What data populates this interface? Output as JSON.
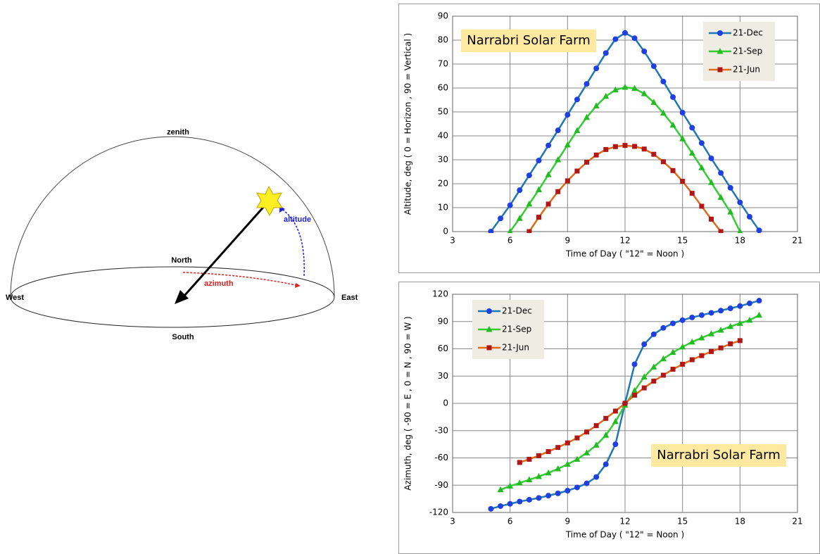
{
  "diagram": {
    "zenith": "zenith",
    "north": "North",
    "south": "South",
    "east": "East",
    "west": "West",
    "altitude": "altitude",
    "azimuth": "azimuth"
  },
  "chart_data": [
    {
      "type": "line",
      "annotation": "Narrabri Solar Farm",
      "x_label": "Time of Day  ( \"12\" = Noon )",
      "y_label": "Altitude, deg  ( 0 = Horizon ,  90 = Vertical )",
      "xlim": [
        3,
        21
      ],
      "xticks": [
        3,
        6,
        9,
        12,
        15,
        18,
        21
      ],
      "ylim": [
        0,
        90
      ],
      "yticks": [
        0,
        10,
        20,
        30,
        40,
        50,
        60,
        70,
        80,
        90
      ],
      "grid": true,
      "legend": "top-right",
      "series": [
        {
          "name": "21-Dec",
          "color": "#1f77b4",
          "marker_color": "#1f3fe0",
          "marker": "circle",
          "x": [
            5,
            5.5,
            6,
            6.5,
            7,
            7.5,
            8,
            8.5,
            9,
            9.5,
            10,
            10.5,
            11,
            11.5,
            12,
            12.5,
            13,
            13.5,
            14,
            14.5,
            15,
            15.5,
            16,
            16.5,
            17,
            17.5,
            18,
            18.5,
            19
          ],
          "values": [
            0,
            5.5,
            11,
            17.3,
            23.5,
            29.7,
            36,
            42.3,
            48.8,
            55.2,
            61.7,
            68.2,
            74.6,
            80.4,
            83,
            80.8,
            75.3,
            69.1,
            62.7,
            56.2,
            49.7,
            43.4,
            37,
            30.6,
            24.5,
            18.3,
            12.2,
            6.2,
            0.5
          ]
        },
        {
          "name": "21-Sep",
          "color": "#33cc33",
          "marker_color": "#22bb22",
          "marker": "triangle",
          "x": [
            6,
            6.5,
            7,
            7.5,
            8,
            8.5,
            9,
            9.5,
            10,
            10.5,
            11,
            11.5,
            12,
            12.5,
            13,
            13.5,
            14,
            14.5,
            15,
            15.5,
            16,
            16.5,
            17,
            17.5,
            18
          ],
          "values": [
            0,
            5.5,
            11.5,
            17.5,
            23.8,
            30,
            36.2,
            42.2,
            47.7,
            52.5,
            56.5,
            59.2,
            60.3,
            59.8,
            57.6,
            54,
            49.5,
            44.5,
            38.8,
            32.8,
            26.7,
            20.5,
            14.3,
            8.2,
            0
          ]
        },
        {
          "name": "21-Jun",
          "color": "#e06a1a",
          "marker_color": "#b01818",
          "marker": "square",
          "x": [
            7,
            7.5,
            8,
            8.5,
            9,
            9.5,
            10,
            10.5,
            11,
            11.5,
            12,
            12.5,
            13,
            13.5,
            14,
            14.5,
            15,
            15.5,
            16,
            16.5,
            17
          ],
          "values": [
            0,
            6,
            11.5,
            16.7,
            21.2,
            25.3,
            29,
            32,
            34.3,
            35.5,
            36,
            35.6,
            34.5,
            32.3,
            29.2,
            25.5,
            21,
            16,
            10.6,
            5.2,
            0
          ]
        }
      ]
    },
    {
      "type": "line",
      "annotation": "Narrabri Solar Farm",
      "x_label": "Time of Day  ( \"12\" = Noon )",
      "y_label": "Azimuth, deg  ( -90 = E , 0 = N ,  90 = W )",
      "xlim": [
        3,
        21
      ],
      "xticks": [
        3,
        6,
        9,
        12,
        15,
        18,
        21
      ],
      "ylim": [
        -120,
        120
      ],
      "yticks": [
        -120,
        -90,
        -60,
        -30,
        0,
        30,
        60,
        90,
        120
      ],
      "grid": true,
      "legend": "top-left",
      "series": [
        {
          "name": "21-Dec",
          "color": "#1f77b4",
          "marker_color": "#1f3fe0",
          "marker": "circle",
          "x": [
            5,
            5.5,
            6,
            6.5,
            7,
            7.5,
            8,
            8.5,
            9,
            9.5,
            10,
            10.5,
            11,
            11.5,
            12,
            12.5,
            13,
            13.5,
            14,
            14.5,
            15,
            15.5,
            16,
            16.5,
            17,
            17.5,
            18,
            18.5,
            19
          ],
          "values": [
            -116,
            -113,
            -110.5,
            -108,
            -106,
            -104,
            -101.5,
            -99,
            -96,
            -92.5,
            -88,
            -81,
            -67,
            -45,
            0,
            43,
            65,
            76,
            83,
            88,
            91.5,
            94.5,
            97,
            99.5,
            102,
            104.5,
            107,
            110,
            113
          ]
        },
        {
          "name": "21-Sep",
          "color": "#33cc33",
          "marker_color": "#22bb22",
          "marker": "triangle",
          "x": [
            5.5,
            6,
            6.5,
            7,
            7.5,
            8,
            8.5,
            9,
            9.5,
            10,
            10.5,
            11,
            11.5,
            12,
            12.5,
            13,
            13.5,
            14,
            14.5,
            15,
            15.5,
            16,
            16.5,
            17,
            17.5,
            18,
            18.5,
            19
          ],
          "values": [
            -95,
            -91,
            -87.5,
            -84,
            -80.5,
            -76.5,
            -72,
            -67,
            -61.5,
            -54.5,
            -46,
            -35,
            -20,
            -2,
            14,
            29,
            40,
            49,
            56,
            62,
            67.5,
            72,
            76.5,
            80.5,
            84.5,
            88,
            91.5,
            97
          ]
        },
        {
          "name": "21-Jun",
          "color": "#e06a1a",
          "marker_color": "#b01818",
          "marker": "square",
          "x": [
            6.5,
            7,
            7.5,
            8,
            8.5,
            9,
            9.5,
            10,
            10.5,
            11,
            11.5,
            12,
            12.5,
            13,
            13.5,
            14,
            14.5,
            15,
            15.5,
            16,
            16.5,
            17,
            17.5,
            18
          ],
          "values": [
            -65,
            -61.5,
            -57.5,
            -53,
            -48.5,
            -43.5,
            -38,
            -31.5,
            -24.5,
            -16.5,
            -8.5,
            0,
            9,
            17,
            24.5,
            31,
            37.5,
            43,
            48,
            52.5,
            57,
            61,
            65.5,
            69
          ]
        }
      ]
    }
  ]
}
